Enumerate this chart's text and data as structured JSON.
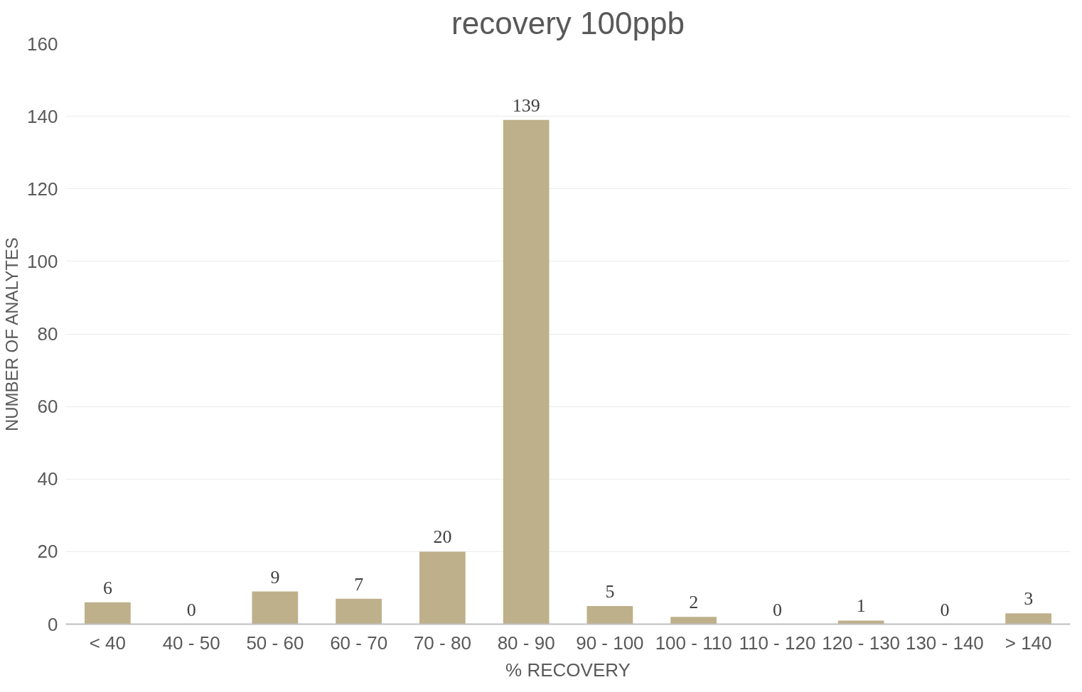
{
  "chart_data": {
    "type": "bar",
    "title": "recovery 100ppb",
    "xlabel": "% RECOVERY",
    "ylabel": "NUMBER OF ANALYTES",
    "categories": [
      "< 40",
      "40 - 50",
      "50 - 60",
      "60 - 70",
      "70 - 80",
      "80 - 90",
      "90 - 100",
      "100 - 110",
      "110 - 120",
      "120 - 130",
      "130 - 140",
      "> 140"
    ],
    "values": [
      6,
      0,
      9,
      7,
      20,
      139,
      5,
      2,
      0,
      1,
      0,
      3
    ],
    "color": "#bdb08b",
    "ylim": [
      0,
      160
    ],
    "yticks": [
      0,
      20,
      40,
      60,
      80,
      100,
      120,
      140,
      160
    ],
    "grid": "y",
    "data_labels": true
  }
}
